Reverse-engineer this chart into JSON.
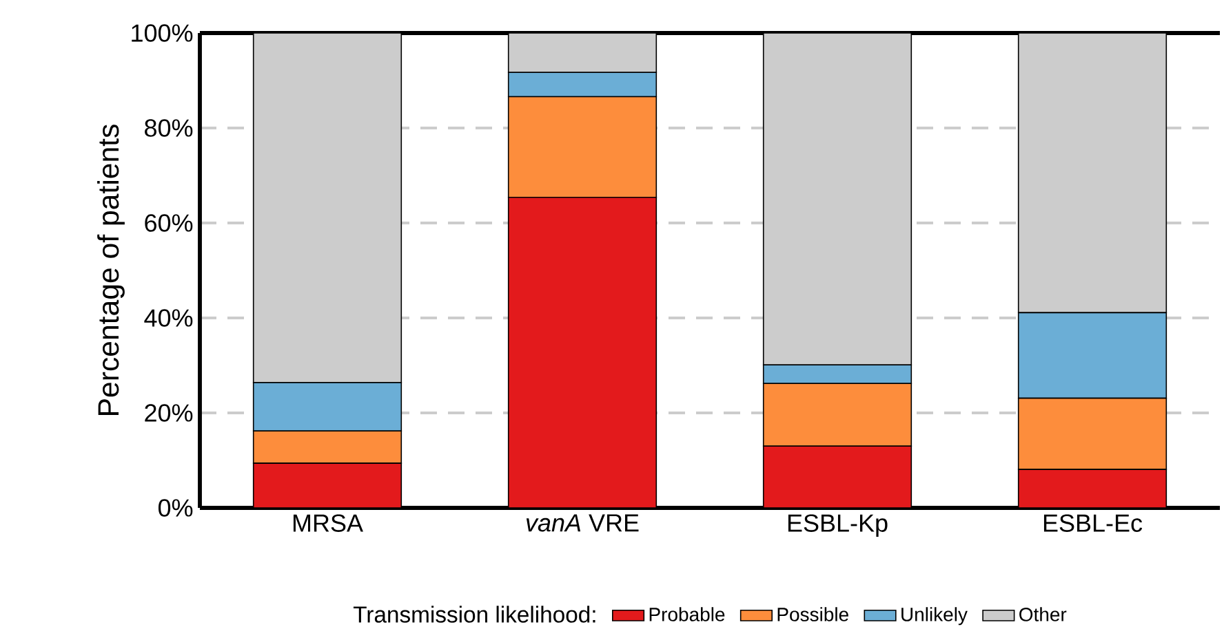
{
  "chart_data": {
    "type": "bar",
    "stacked": true,
    "ylabel": "Percentage of patients",
    "legend_title": "Transmission likelihood:",
    "categories": [
      "MRSA",
      "*vanA* VRE",
      "ESBL-Kp",
      "ESBL-Ec"
    ],
    "series": [
      {
        "name": "Probable",
        "color": "#e31a1c",
        "values": [
          9.4,
          65.4,
          13.0,
          8.1
        ]
      },
      {
        "name": "Possible",
        "color": "#fd8d3c",
        "values": [
          6.8,
          21.2,
          13.2,
          15.0
        ]
      },
      {
        "name": "Unlikely",
        "color": "#6baed6",
        "values": [
          10.2,
          5.1,
          3.9,
          18.0
        ]
      },
      {
        "name": "Other",
        "color": "#cccccc",
        "values": [
          73.6,
          8.3,
          69.9,
          58.9
        ]
      }
    ],
    "ylim": [
      0,
      100
    ],
    "yticks": [
      {
        "value": 0,
        "label": "0%"
      },
      {
        "value": 20,
        "label": "20%"
      },
      {
        "value": 40,
        "label": "40%"
      },
      {
        "value": 60,
        "label": "60%"
      },
      {
        "value": 80,
        "label": "80%"
      },
      {
        "value": 100,
        "label": "100%"
      }
    ],
    "grid": "y",
    "legend": "bottom"
  }
}
